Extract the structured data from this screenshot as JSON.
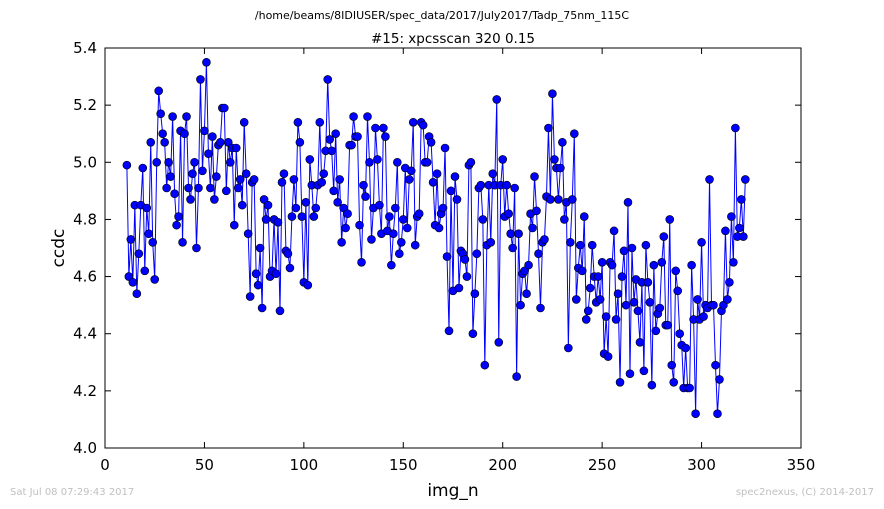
{
  "header": {
    "path": "/home/beams/8IDIUSER/spec_data/2017/July2017/Tadp_75nm_115C"
  },
  "footer": {
    "timestamp": "Sat Jul 08 07:29:43 2017",
    "credit": "spec2nexus, (C) 2014-2017"
  },
  "chart_data": {
    "type": "line",
    "title": "#15: xpcsscan 320 0.15",
    "xlabel": "img_n",
    "ylabel": "ccdc",
    "xlim": [
      0,
      350
    ],
    "ylim": [
      4.0,
      5.4
    ],
    "xticks": [
      0,
      50,
      100,
      150,
      200,
      250,
      300,
      350
    ],
    "yticks": [
      4.0,
      4.2,
      4.4,
      4.6,
      4.8,
      5.0,
      5.2,
      5.4
    ],
    "grid": false,
    "line_color": "#0000ff",
    "marker_color": "#0000ff",
    "series": [
      {
        "x_start": 11,
        "x_step": 1,
        "values": [
          4.99,
          4.6,
          4.73,
          4.58,
          4.85,
          4.54,
          4.68,
          4.85,
          4.98,
          4.62,
          4.84,
          4.75,
          5.07,
          4.72,
          4.59,
          5.0,
          5.25,
          5.17,
          5.1,
          5.07,
          4.91,
          5.0,
          4.95,
          5.16,
          4.89,
          4.78,
          4.81,
          5.11,
          4.72,
          5.1,
          5.16,
          4.91,
          4.87,
          4.96,
          5.0,
          4.7,
          4.91,
          5.29,
          4.97,
          5.11,
          5.35,
          5.03,
          4.91,
          5.09,
          4.87,
          4.95,
          5.06,
          5.07,
          5.19,
          5.19,
          4.9,
          5.07,
          5.0,
          5.05,
          4.78,
          5.05,
          4.91,
          4.94,
          4.85,
          5.14,
          4.96,
          4.75,
          4.53,
          4.93,
          4.94,
          4.61,
          4.57,
          4.7,
          4.49,
          4.87,
          4.8,
          4.85,
          4.6,
          4.62,
          4.8,
          4.61,
          4.79,
          4.48,
          4.93,
          4.96,
          4.69,
          4.68,
          4.63,
          4.81,
          4.94,
          4.84,
          5.14,
          5.07,
          4.81,
          4.58,
          4.86,
          4.57,
          5.01,
          4.92,
          4.81,
          4.84,
          4.92,
          5.14,
          4.93,
          4.96,
          5.04,
          5.29,
          5.08,
          5.04,
          4.9,
          5.1,
          4.86,
          4.94,
          4.72,
          4.84,
          4.77,
          4.82,
          5.06,
          5.06,
          5.16,
          5.09,
          5.09,
          4.78,
          4.65,
          4.92,
          4.88,
          5.16,
          5.0,
          4.73,
          4.84,
          5.12,
          5.01,
          4.85,
          4.75,
          5.12,
          5.09,
          4.76,
          4.81,
          4.64,
          4.75,
          4.84,
          5.0,
          4.68,
          4.72,
          4.8,
          4.98,
          4.77,
          4.94,
          4.97,
          5.14,
          4.71,
          4.81,
          4.82,
          5.14,
          5.13,
          5.0,
          5.0,
          5.09,
          5.07,
          4.93,
          4.78,
          4.96,
          4.77,
          4.82,
          4.84,
          5.05,
          4.67,
          4.41,
          4.9,
          4.55,
          4.95,
          4.87,
          4.56,
          4.69,
          4.68,
          4.66,
          4.6,
          4.99,
          5.0,
          4.4,
          4.54,
          4.68,
          4.91,
          4.92,
          4.8,
          4.29,
          4.71,
          4.92,
          4.72,
          4.96,
          4.92,
          5.22,
          4.37,
          4.92,
          5.01,
          4.81,
          4.92,
          4.82,
          4.75,
          4.7,
          4.91,
          4.25,
          4.75,
          4.5,
          4.61,
          4.62,
          4.54,
          4.64,
          4.82,
          4.77,
          4.95,
          4.83,
          4.68,
          4.49,
          4.72,
          4.73,
          4.88,
          5.12,
          4.87,
          5.24,
          5.01,
          4.98,
          4.87,
          4.98,
          5.07,
          4.8,
          4.86,
          4.35,
          4.72,
          4.87,
          5.1,
          4.52,
          4.63,
          4.71,
          4.62,
          4.81,
          4.45,
          4.48,
          4.56,
          4.71,
          4.6,
          4.51,
          4.6,
          4.52,
          4.65,
          4.33,
          4.46,
          4.32,
          4.65,
          4.64,
          4.76,
          4.45,
          4.54,
          4.23,
          4.6,
          4.69,
          4.5,
          4.86,
          4.26,
          4.7,
          4.51,
          4.59,
          4.48,
          4.37,
          4.58,
          4.27,
          4.71,
          4.58,
          4.51,
          4.22,
          4.64,
          4.41,
          4.47,
          4.49,
          4.65,
          4.74,
          4.43,
          4.43,
          4.8,
          4.29,
          4.23,
          4.62,
          4.55,
          4.4,
          4.36,
          4.21,
          4.35,
          4.21,
          4.21,
          4.64,
          4.45,
          4.12,
          4.52,
          4.45,
          4.72,
          4.46,
          4.5,
          4.49,
          4.94,
          4.5,
          4.5,
          4.29,
          4.12,
          4.24,
          4.48,
          4.5,
          4.76,
          4.52,
          4.58,
          4.81,
          4.65,
          5.12,
          4.74,
          4.77,
          4.87,
          4.74,
          4.94
        ]
      }
    ]
  }
}
